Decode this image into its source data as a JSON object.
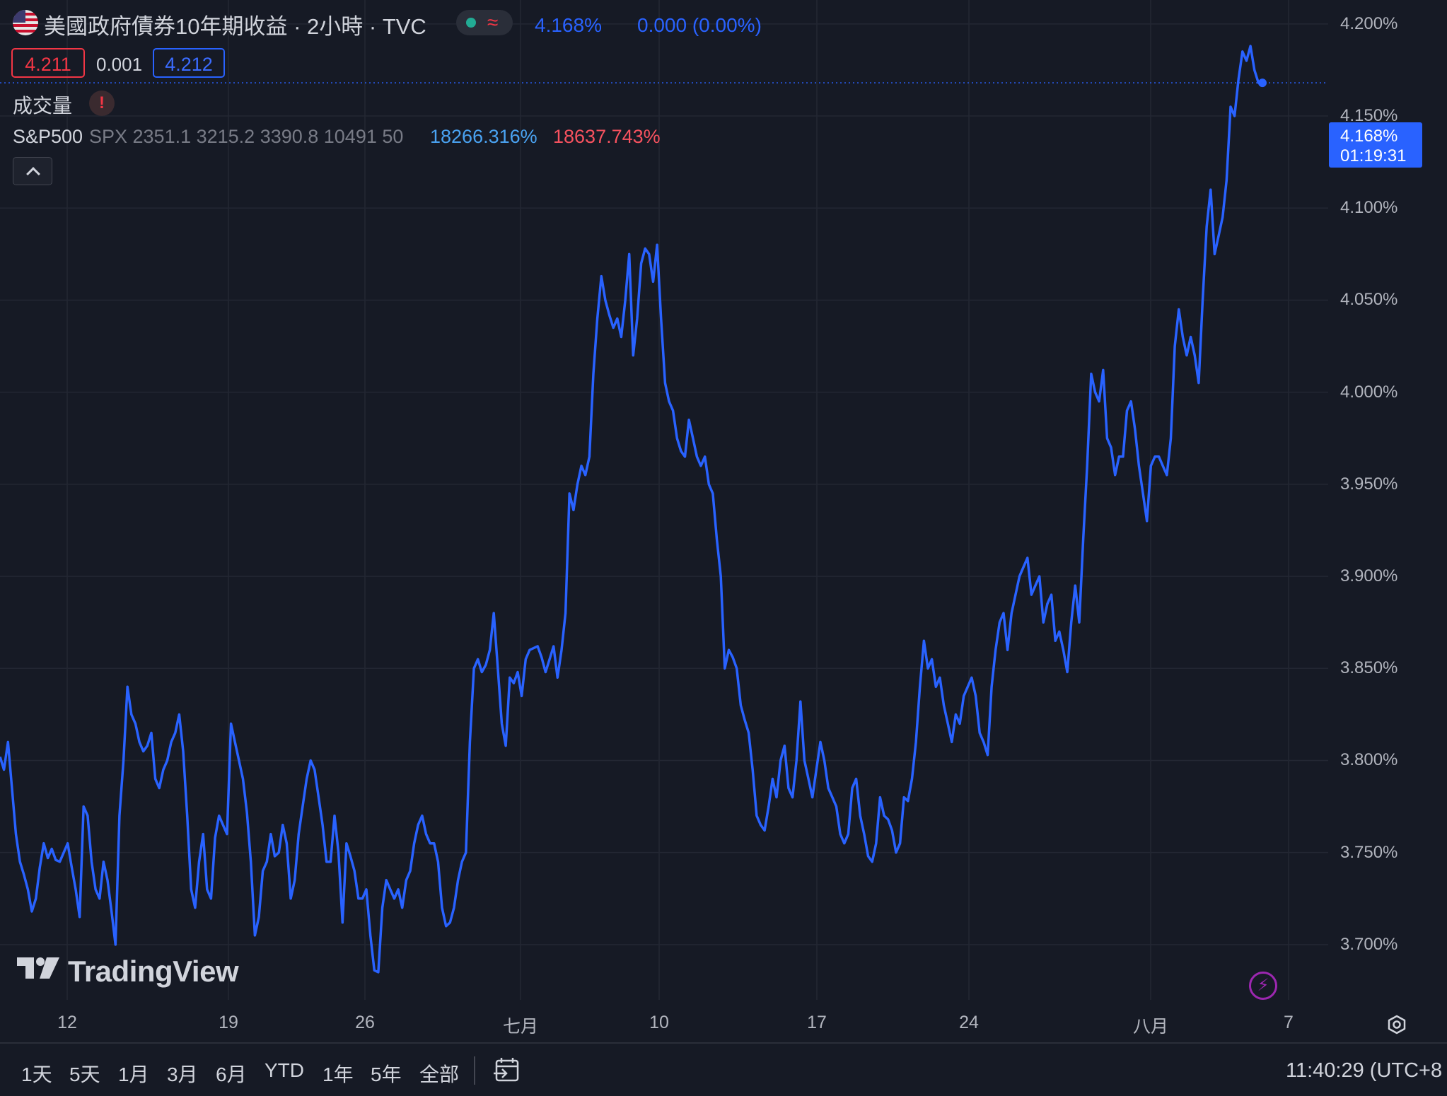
{
  "header": {
    "symbol_title": "美國政府債券10年期收益 · 2小時 · TVC",
    "status_icon": "market-status-dot-icon",
    "approx_glyph": "≈",
    "last_value": "4.168%",
    "change": "0.000 (0.00%)",
    "bid": "4.211",
    "spread": "0.001",
    "ask": "4.212"
  },
  "volume": {
    "label": "成交量",
    "warning_glyph": "!"
  },
  "indicator": {
    "name": "S&P500",
    "params": "SPX 2351.1 3215.2 3390.8 10491 50",
    "value1": "18266.316%",
    "value2": "18637.743%"
  },
  "price_tag": {
    "value": "4.168%",
    "countdown": "01:19:31"
  },
  "branding": {
    "logo_text": "TradingView",
    "bolt_glyph": "⚡"
  },
  "bottom_bar": {
    "ranges": [
      "1天",
      "5天",
      "1月",
      "3月",
      "6月",
      "YTD",
      "1年",
      "5年",
      "全部"
    ],
    "clock": "11:40:29 (UTC+8"
  },
  "colors": {
    "line": "#2962ff",
    "background": "#161a25",
    "grid": "#232733"
  },
  "chart_data": {
    "type": "line",
    "title": "",
    "xlabel": "",
    "ylabel": "",
    "x_tick_labels": [
      "12",
      "19",
      "26",
      "七月",
      "10",
      "17",
      "24",
      "八月",
      "7"
    ],
    "y_tick_labels": [
      "4.200%",
      "4.150%",
      "4.100%",
      "4.050%",
      "4.000%",
      "3.950%",
      "3.900%",
      "3.850%",
      "3.800%",
      "3.750%",
      "3.700%"
    ],
    "ylim": [
      3.67,
      4.213
    ],
    "grid": true,
    "series": [
      {
        "values": [
          3.802,
          3.795,
          3.81,
          3.785,
          3.76,
          3.745,
          3.738,
          3.73,
          3.718,
          3.725,
          3.742,
          3.755,
          3.747,
          3.752,
          3.746,
          3.745,
          3.75,
          3.755,
          3.742,
          3.73,
          3.715,
          3.775,
          3.77,
          3.745,
          3.73,
          3.725,
          3.745,
          3.735,
          3.718,
          3.7,
          3.77,
          3.8,
          3.84,
          3.825,
          3.82,
          3.81,
          3.805,
          3.808,
          3.815,
          3.79,
          3.785,
          3.795,
          3.8,
          3.81,
          3.815,
          3.825,
          3.805,
          3.77,
          3.73,
          3.72,
          3.745,
          3.76,
          3.73,
          3.725,
          3.758,
          3.77,
          3.765,
          3.76,
          3.82,
          3.81,
          3.8,
          3.79,
          3.772,
          3.745,
          3.705,
          3.715,
          3.74,
          3.745,
          3.76,
          3.748,
          3.75,
          3.765,
          3.755,
          3.725,
          3.735,
          3.76,
          3.775,
          3.79,
          3.8,
          3.795,
          3.78,
          3.765,
          3.745,
          3.745,
          3.77,
          3.75,
          3.712,
          3.755,
          3.748,
          3.74,
          3.725,
          3.725,
          3.73,
          3.705,
          3.686,
          3.685,
          3.72,
          3.735,
          3.73,
          3.725,
          3.73,
          3.72,
          3.735,
          3.74,
          3.755,
          3.765,
          3.77,
          3.76,
          3.755,
          3.755,
          3.745,
          3.72,
          3.71,
          3.712,
          3.72,
          3.735,
          3.745,
          3.75,
          3.81,
          3.85,
          3.855,
          3.848,
          3.852,
          3.86,
          3.88,
          3.85,
          3.82,
          3.808,
          3.845,
          3.842,
          3.848,
          3.835,
          3.855,
          3.86,
          3.861,
          3.862,
          3.856,
          3.848,
          3.855,
          3.862,
          3.845,
          3.86,
          3.88,
          3.945,
          3.936,
          3.95,
          3.96,
          3.955,
          3.965,
          4.01,
          4.04,
          4.063,
          4.05,
          4.042,
          4.035,
          4.04,
          4.03,
          4.05,
          4.075,
          4.02,
          4.04,
          4.07,
          4.078,
          4.075,
          4.06,
          4.08,
          4.04,
          4.005,
          3.995,
          3.99,
          3.975,
          3.968,
          3.965,
          3.985,
          3.975,
          3.965,
          3.96,
          3.965,
          3.95,
          3.945,
          3.92,
          3.9,
          3.85,
          3.86,
          3.856,
          3.85,
          3.83,
          3.822,
          3.815,
          3.795,
          3.77,
          3.765,
          3.762,
          3.775,
          3.79,
          3.78,
          3.8,
          3.808,
          3.785,
          3.78,
          3.8,
          3.832,
          3.8,
          3.79,
          3.78,
          3.795,
          3.81,
          3.8,
          3.785,
          3.78,
          3.775,
          3.76,
          3.755,
          3.76,
          3.785,
          3.79,
          3.77,
          3.76,
          3.748,
          3.745,
          3.755,
          3.78,
          3.77,
          3.768,
          3.762,
          3.75,
          3.755,
          3.78,
          3.778,
          3.79,
          3.81,
          3.84,
          3.865,
          3.85,
          3.855,
          3.84,
          3.845,
          3.83,
          3.82,
          3.81,
          3.825,
          3.82,
          3.835,
          3.84,
          3.845,
          3.835,
          3.815,
          3.81,
          3.803,
          3.84,
          3.86,
          3.875,
          3.88,
          3.86,
          3.88,
          3.89,
          3.9,
          3.905,
          3.91,
          3.89,
          3.895,
          3.9,
          3.875,
          3.885,
          3.89,
          3.865,
          3.87,
          3.86,
          3.848,
          3.875,
          3.895,
          3.875,
          3.92,
          3.96,
          4.01,
          4.0,
          3.995,
          4.012,
          3.975,
          3.97,
          3.955,
          3.965,
          3.965,
          3.99,
          3.995,
          3.98,
          3.96,
          3.945,
          3.93,
          3.96,
          3.965,
          3.965,
          3.96,
          3.955,
          3.975,
          4.025,
          4.045,
          4.03,
          4.02,
          4.03,
          4.02,
          4.005,
          4.05,
          4.09,
          4.11,
          4.075,
          4.085,
          4.095,
          4.115,
          4.155,
          4.15,
          4.17,
          4.185,
          4.18,
          4.188,
          4.175,
          4.168,
          4.168
        ]
      }
    ]
  }
}
